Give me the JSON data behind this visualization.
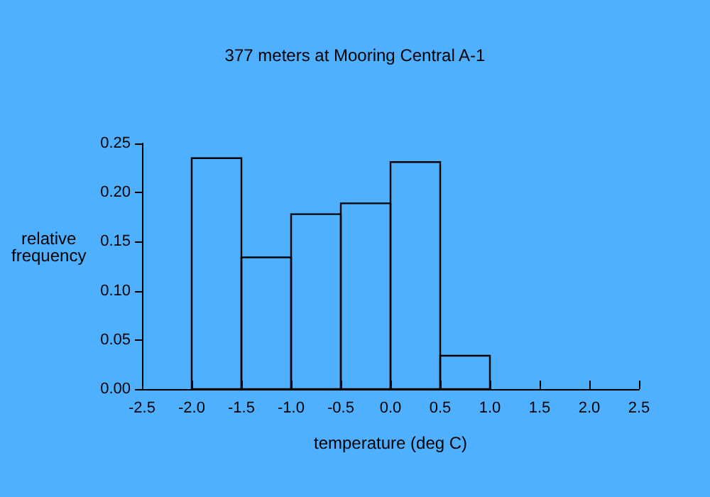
{
  "chart_data": {
    "type": "histogram",
    "title": "377 meters at Mooring Central A-1",
    "xlabel": "temperature (deg C)",
    "ylabel": "relative\nfrequency",
    "bins": [
      -2.0,
      -1.5,
      -1.0,
      -0.5,
      0.0,
      0.5,
      1.0
    ],
    "values": [
      0.235,
      0.134,
      0.178,
      0.189,
      0.231,
      0.034
    ],
    "color": "#000000",
    "xlim": [
      -2.5,
      2.5
    ],
    "xticks": [
      {
        "value": -2.5,
        "label": "-2.5"
      },
      {
        "value": -2.0,
        "label": "-2.0"
      },
      {
        "value": -1.5,
        "label": "-1.5"
      },
      {
        "value": -1.0,
        "label": "-1.0"
      },
      {
        "value": -0.5,
        "label": "-0.5"
      },
      {
        "value": 0,
        "label": "0.0"
      },
      {
        "value": 0.5,
        "label": "0.5"
      },
      {
        "value": 1.0,
        "label": "1.0"
      },
      {
        "value": 1.5,
        "label": "1.5"
      },
      {
        "value": 2.0,
        "label": "2.0"
      },
      {
        "value": 2.5,
        "label": "2.5"
      }
    ],
    "ylim": [
      0,
      0.25
    ],
    "yticks": [
      {
        "value": 0,
        "label": "0.00"
      },
      {
        "value": 0.05,
        "label": "0.05"
      },
      {
        "value": 0.1,
        "label": "0.10"
      },
      {
        "value": 0.15,
        "label": "0.15"
      },
      {
        "value": 0.2,
        "label": "0.20"
      },
      {
        "value": 0.25,
        "label": "0.25"
      }
    ],
    "grid": false
  }
}
